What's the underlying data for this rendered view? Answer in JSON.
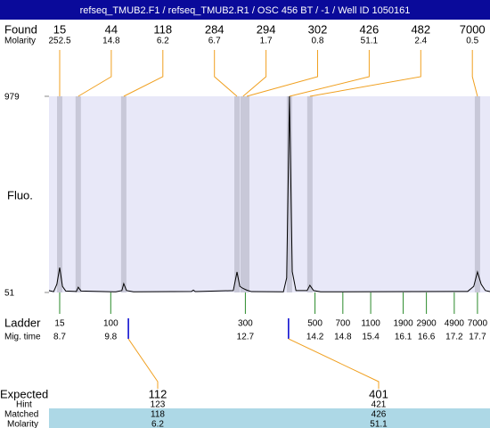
{
  "chart_data": {
    "type": "line",
    "title": "refseq_TMUB2.F1 / refseq_TMUB2.R1 / OSC 456 BT / -1 / Well ID 1050161",
    "ylabel": "Fluo.",
    "ylim": [
      51,
      979
    ],
    "yticks": [
      51,
      979
    ],
    "xlim": [
      8.47,
      17.97
    ],
    "x": [
      8.47,
      8.57,
      8.64,
      8.7,
      8.76,
      8.83,
      9.06,
      9.1,
      9.16,
      9.91,
      10.04,
      10.08,
      10.14,
      10.29,
      11.54,
      11.58,
      11.62,
      12.44,
      12.52,
      12.58,
      12.65,
      12.73,
      12.83,
      13.52,
      13.59,
      13.65,
      13.71,
      13.79,
      14.03,
      14.09,
      14.17,
      14.32,
      17.49,
      17.62,
      17.7,
      17.78,
      17.87,
      17.97
    ],
    "values": [
      60,
      55,
      90,
      169,
      80,
      58,
      56,
      76,
      58,
      54,
      60,
      93,
      60,
      54,
      56,
      62,
      55,
      60,
      148,
      80,
      70,
      62,
      55,
      54,
      120,
      979,
      150,
      60,
      60,
      85,
      60,
      54,
      56,
      80,
      148,
      90,
      60,
      55
    ],
    "color": "#000000"
  },
  "found": {
    "label": "Found",
    "molarity_label": "Molarity",
    "sizes": [
      15,
      44,
      118,
      284,
      294,
      302,
      426,
      482,
      7000
    ],
    "molarity": [
      252.5,
      14.8,
      6.2,
      6.7,
      1.7,
      0.8,
      51.1,
      2.4,
      0.5
    ],
    "x": [
      8.7,
      9.1,
      10.08,
      12.52,
      12.65,
      12.73,
      13.65,
      14.09,
      17.7
    ]
  },
  "ladder": {
    "label": "Ladder",
    "time_label": "Mig. time",
    "sizes": [
      15,
      100,
      300,
      500,
      700,
      1100,
      1900,
      2900,
      4900,
      7000
    ],
    "mig_time": [
      8.7,
      9.8,
      12.7,
      14.2,
      14.8,
      15.4,
      16.1,
      16.6,
      17.2,
      17.7
    ]
  },
  "expected": {
    "label": "Expected",
    "hint_label": "Hint",
    "matched_label": "Matched",
    "molarity_label": "Molarity",
    "sizes": [
      112,
      401
    ],
    "hint": [
      123,
      421
    ],
    "matched": [
      118,
      426
    ],
    "molarity": [
      6.2,
      51.1
    ],
    "x": [
      10.18,
      13.63
    ]
  }
}
